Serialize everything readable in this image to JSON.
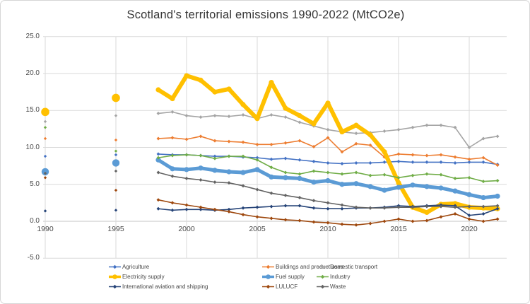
{
  "chart_data": {
    "type": "line",
    "title": "Scotland's territorial emissions 1990-2022 (MtCO2e)",
    "xlabel": "",
    "ylabel": "",
    "ylim": [
      -5.0,
      25.0
    ],
    "xlim": [
      1990,
      2022
    ],
    "grid": true,
    "legend_position": "bottom",
    "y_ticks": [
      25.0,
      20.0,
      15.0,
      10.0,
      5.0,
      0.0,
      -5.0
    ],
    "x_ticks": [
      1990,
      1995,
      2000,
      2005,
      2010,
      2015,
      2020
    ],
    "x": [
      1990,
      1995,
      1998,
      1999,
      2000,
      2001,
      2002,
      2003,
      2004,
      2005,
      2006,
      2007,
      2008,
      2009,
      2010,
      2011,
      2012,
      2013,
      2014,
      2015,
      2016,
      2017,
      2018,
      2019,
      2020,
      2021,
      2022
    ],
    "series": [
      {
        "name": "Agriculture",
        "color": "#4472C4",
        "thick": false,
        "values": [
          8.8,
          9.0,
          9.1,
          9.0,
          9.0,
          8.9,
          8.8,
          8.8,
          8.7,
          8.6,
          8.4,
          8.5,
          8.3,
          8.1,
          7.9,
          7.8,
          7.9,
          7.9,
          8.0,
          8.1,
          8.0,
          8.0,
          8.0,
          7.9,
          8.0,
          8.0,
          7.7
        ]
      },
      {
        "name": "Buildings and product uses",
        "color": "#ED7D31",
        "thick": false,
        "values": [
          11.2,
          11.0,
          11.2,
          11.3,
          11.1,
          11.5,
          10.9,
          10.8,
          10.7,
          10.4,
          10.4,
          10.6,
          10.9,
          10.1,
          11.3,
          9.4,
          10.5,
          10.3,
          8.7,
          9.1,
          9.0,
          8.9,
          9.0,
          8.7,
          8.4,
          8.6,
          7.6
        ]
      },
      {
        "name": "Domestic transport",
        "color": "#A5A5A5",
        "thick": false,
        "values": [
          13.5,
          14.3,
          14.6,
          14.8,
          14.3,
          14.1,
          14.3,
          14.2,
          14.4,
          13.9,
          14.4,
          14.1,
          13.4,
          12.9,
          12.4,
          12.1,
          11.9,
          12.0,
          12.2,
          12.4,
          12.7,
          13.0,
          13.0,
          12.7,
          10.0,
          11.2,
          11.5
        ]
      },
      {
        "name": "Electricity supply",
        "color": "#FFC000",
        "thick": true,
        "values": [
          14.8,
          16.7,
          17.8,
          16.6,
          19.7,
          19.1,
          17.5,
          17.9,
          15.8,
          13.9,
          18.8,
          15.3,
          14.3,
          13.2,
          16.0,
          12.1,
          13.0,
          11.7,
          9.4,
          5.2,
          1.9,
          1.2,
          2.3,
          2.4,
          1.9,
          1.8,
          1.7
        ]
      },
      {
        "name": "Fuel supply",
        "color": "#5B9BD5",
        "thick": true,
        "values": [
          6.7,
          7.9,
          8.3,
          7.1,
          7.0,
          7.2,
          6.9,
          6.7,
          6.6,
          7.0,
          6.0,
          5.9,
          5.8,
          5.3,
          5.5,
          5.0,
          5.1,
          4.7,
          4.2,
          4.6,
          4.9,
          4.7,
          4.5,
          4.1,
          3.6,
          3.2,
          3.4
        ]
      },
      {
        "name": "Industry",
        "color": "#70AD47",
        "thick": false,
        "values": [
          12.7,
          9.5,
          8.6,
          8.9,
          9.0,
          8.9,
          8.5,
          8.8,
          8.8,
          8.3,
          7.3,
          6.6,
          6.4,
          6.8,
          6.6,
          6.4,
          6.6,
          6.2,
          6.3,
          5.9,
          6.2,
          6.4,
          6.3,
          5.8,
          5.9,
          5.4,
          5.5
        ]
      },
      {
        "name": "International aviation and shipping",
        "color": "#264478",
        "thick": false,
        "values": [
          1.4,
          1.5,
          1.7,
          1.5,
          1.6,
          1.6,
          1.5,
          1.6,
          1.8,
          1.9,
          2.0,
          2.1,
          2.1,
          1.8,
          1.7,
          1.7,
          1.8,
          1.8,
          1.9,
          2.1,
          2.0,
          2.1,
          2.2,
          2.1,
          0.8,
          1.0,
          1.7
        ]
      },
      {
        "name": "LULUCF",
        "color": "#9E480E",
        "thick": false,
        "values": [
          5.9,
          4.2,
          2.9,
          2.5,
          2.2,
          1.9,
          1.6,
          1.3,
          0.9,
          0.6,
          0.4,
          0.2,
          0.1,
          -0.1,
          -0.2,
          -0.4,
          -0.5,
          -0.3,
          0.0,
          0.3,
          0.0,
          0.1,
          0.6,
          1.0,
          0.3,
          0.0,
          0.3
        ]
      },
      {
        "name": "Waste",
        "color": "#636363",
        "thick": false,
        "values": [
          6.5,
          6.8,
          6.6,
          6.1,
          5.8,
          5.6,
          5.3,
          5.2,
          4.8,
          4.3,
          3.8,
          3.5,
          3.2,
          2.8,
          2.5,
          2.2,
          1.9,
          1.8,
          1.8,
          1.9,
          1.9,
          2.0,
          2.0,
          1.9,
          2.0,
          2.0,
          2.1
        ]
      }
    ]
  }
}
